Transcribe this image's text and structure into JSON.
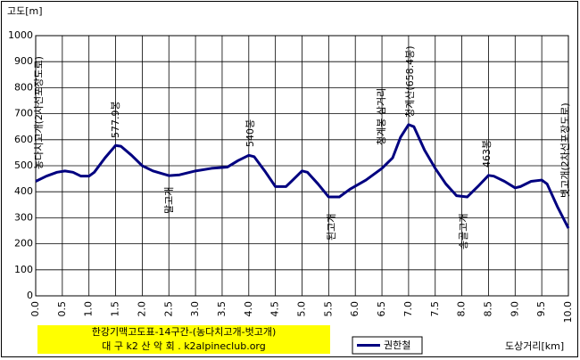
{
  "chart_data": {
    "type": "line",
    "y_axis_label": "고도[m]",
    "x_axis_label": "도상거리[km]",
    "title_lines": [
      "한강기맥고도표-14구간-(농다치고개-벗고개)",
      "대 구 k2 산 악 회 . k2alpineclub.org"
    ],
    "title_background": "#ffff00",
    "grid": true,
    "xlim": [
      0,
      10
    ],
    "ylim": [
      0,
      1000
    ],
    "xticks": [
      {
        "value": 0,
        "label": "0.0"
      },
      {
        "value": 0.5,
        "label": "0.5"
      },
      {
        "value": 1,
        "label": "1.0"
      },
      {
        "value": 1.5,
        "label": "1.5"
      },
      {
        "value": 2,
        "label": "2.0"
      },
      {
        "value": 2.5,
        "label": "2.5"
      },
      {
        "value": 3,
        "label": "3.0"
      },
      {
        "value": 3.5,
        "label": "3.5"
      },
      {
        "value": 4,
        "label": "4.0"
      },
      {
        "value": 4.5,
        "label": "4.5"
      },
      {
        "value": 5,
        "label": "5.0"
      },
      {
        "value": 5.5,
        "label": "5.5"
      },
      {
        "value": 6,
        "label": "6.0"
      },
      {
        "value": 6.5,
        "label": "6.5"
      },
      {
        "value": 7,
        "label": "7.0"
      },
      {
        "value": 7.5,
        "label": "7.5"
      },
      {
        "value": 8,
        "label": "8.0"
      },
      {
        "value": 8.5,
        "label": "8.5"
      },
      {
        "value": 9,
        "label": "9.0"
      },
      {
        "value": 9.5,
        "label": "9.5"
      },
      {
        "value": 10,
        "label": "10.0"
      }
    ],
    "yticks": [
      0,
      100,
      200,
      300,
      400,
      500,
      600,
      700,
      800,
      900,
      1000
    ],
    "x": [
      0,
      0.2,
      0.4,
      0.55,
      0.7,
      0.85,
      1.0,
      1.1,
      1.3,
      1.5,
      1.6,
      1.8,
      2.0,
      2.2,
      2.5,
      2.7,
      3.0,
      3.3,
      3.6,
      3.8,
      4.0,
      4.1,
      4.3,
      4.5,
      4.7,
      4.8,
      5.0,
      5.1,
      5.3,
      5.5,
      5.7,
      5.9,
      6.2,
      6.5,
      6.7,
      6.85,
      7.0,
      7.1,
      7.3,
      7.5,
      7.7,
      7.9,
      8.1,
      8.3,
      8.5,
      8.6,
      8.8,
      9.0,
      9.1,
      9.3,
      9.5,
      9.6,
      9.8,
      10.0
    ],
    "series": [
      {
        "name": "권한철",
        "color": "#000080",
        "values": [
          440,
          460,
          475,
          480,
          475,
          460,
          460,
          475,
          530,
          578,
          575,
          540,
          500,
          480,
          462,
          465,
          480,
          490,
          495,
          520,
          540,
          535,
          480,
          420,
          420,
          440,
          480,
          475,
          430,
          380,
          380,
          410,
          445,
          490,
          530,
          610,
          658,
          650,
          560,
          490,
          430,
          385,
          380,
          420,
          463,
          460,
          440,
          415,
          420,
          440,
          445,
          430,
          340,
          260
        ]
      }
    ],
    "annotations": [
      "농다치고개(2차선포장도로)",
      "577.9봉",
      "말고개",
      "540봉",
      "된고개",
      "청계봉  삼거리",
      "청계산(658.4봉)",
      "송골고개",
      "463봉",
      "벗고개(2차선포장도로)"
    ]
  }
}
